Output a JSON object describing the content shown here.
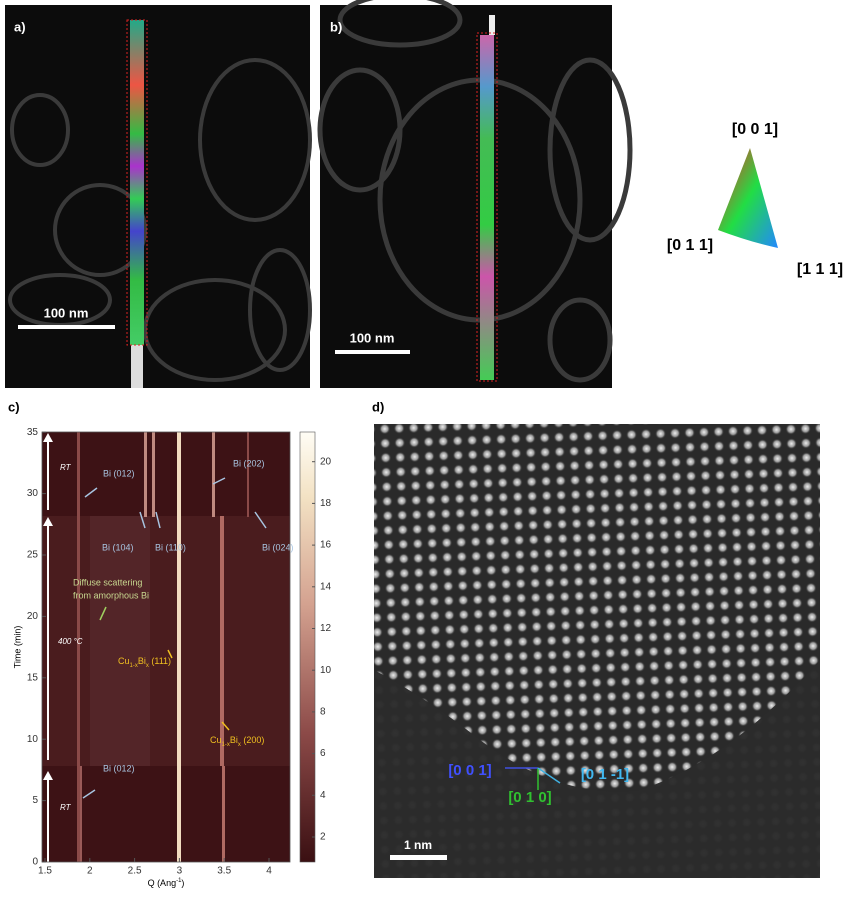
{
  "panels": {
    "a": {
      "label": "a)",
      "scale_bar": "100 nm"
    },
    "b": {
      "label": "b)",
      "scale_bar": "100 nm"
    },
    "orientation_key": {
      "top": "[0 0 1]",
      "left": "[0 1 1]",
      "right": "[1 1 1]"
    },
    "c": {
      "label": "c)",
      "y_label": "Time (min)",
      "x_label": {
        "text": "Q (Ang",
        "sup": "-1",
        "close": ")"
      },
      "x_ticks": [
        "1.5",
        "2",
        "2.5",
        "3",
        "3.5",
        "4"
      ],
      "y_ticks": [
        "0",
        "5",
        "10",
        "15",
        "20",
        "25",
        "30",
        "35"
      ],
      "colorbar_ticks": [
        "2",
        "4",
        "6",
        "8",
        "10",
        "12",
        "14",
        "16",
        "18",
        "20"
      ],
      "annotations": {
        "rt_top": "RT",
        "rt_bottom": "RT",
        "temp": "400 °C",
        "bi012_top": "Bi (012)",
        "bi202": "Bi (202)",
        "bi104": "Bi (104)",
        "bi110": "Bi (110)",
        "bi024": "Bi (024)",
        "diffuse_1": "Diffuse scattering",
        "diffuse_2": "from amorphous Bi",
        "bi012_bottom": "Bi (012)",
        "cu111": {
          "base": "Cu",
          "sub1": "1-x",
          "el": "Bi",
          "sub2": "x",
          "suffix": " (111)"
        },
        "cu200": {
          "base": "Cu",
          "sub1": "1-x",
          "el": "Bi",
          "sub2": "x",
          "suffix": " (200)"
        }
      }
    },
    "d": {
      "label": "d)",
      "scale_bar": "1 nm",
      "dir_001": "[0 0 1]",
      "dir_010": "[0 1 0]",
      "dir_01m1": "[0 1 -1]"
    }
  }
}
